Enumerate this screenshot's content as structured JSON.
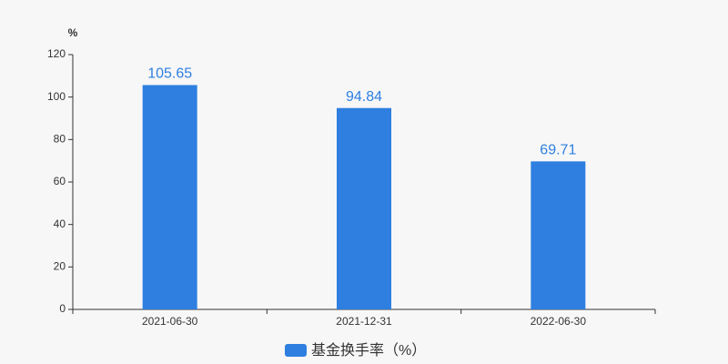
{
  "chart_data": {
    "type": "bar",
    "y_label": "%",
    "categories": [
      "2021-06-30",
      "2021-12-31",
      "2022-06-30"
    ],
    "series": [
      {
        "name": "基金换手率（%）",
        "color": "#2e7fe0",
        "values": [
          105.65,
          94.84,
          69.71
        ]
      }
    ],
    "ylim": [
      0,
      120
    ],
    "yticks": [
      0,
      20,
      40,
      60,
      80,
      100,
      120
    ],
    "grid": false
  }
}
